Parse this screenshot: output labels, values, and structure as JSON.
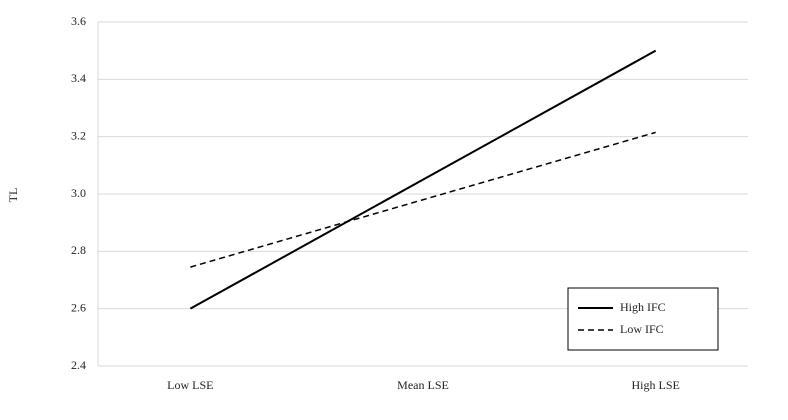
{
  "chart_data": {
    "type": "line",
    "y_label": "TL",
    "categories": [
      "Low LSE",
      "Mean LSE",
      "High LSE"
    ],
    "series": [
      {
        "name": "High IFC",
        "color": "#000000",
        "dash": "solid",
        "values": [
          2.6,
          3.05,
          3.5
        ]
      },
      {
        "name": "Low IFC",
        "color": "#000000",
        "dash": "dashed",
        "values": [
          2.745,
          2.98,
          3.215
        ]
      }
    ],
    "ylim": [
      2.4,
      3.6
    ],
    "yticks": [
      2.4,
      2.6,
      2.8,
      {
        "value": 3,
        "label": "3.0"
      },
      3.2,
      3.4,
      3.6
    ],
    "grid": true,
    "legend": "lower-right"
  }
}
